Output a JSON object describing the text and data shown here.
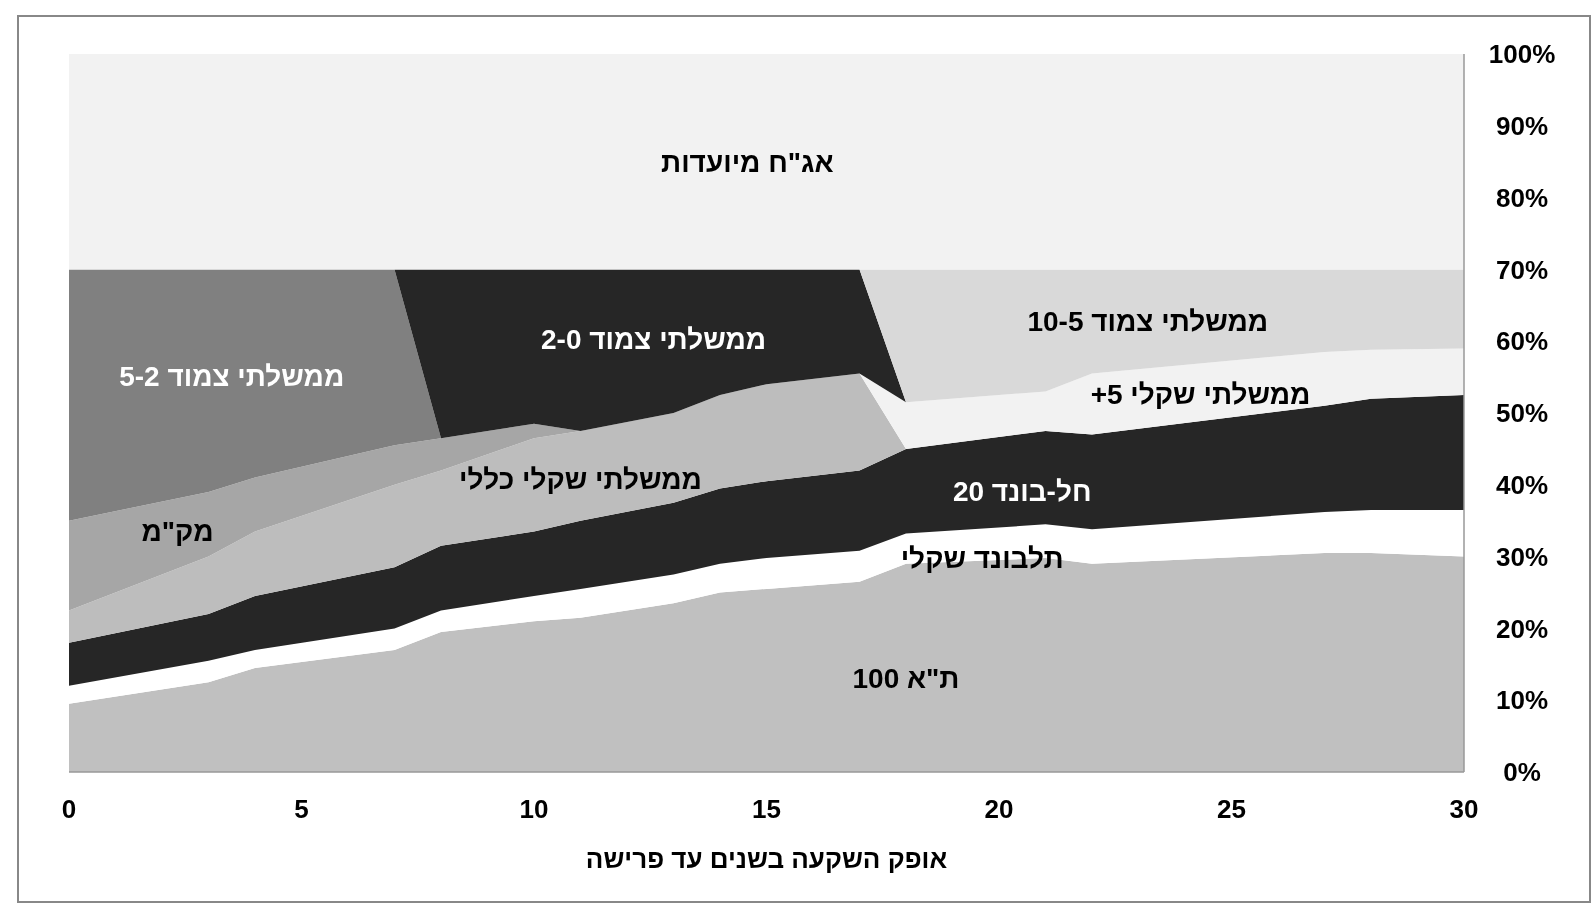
{
  "chart_data": {
    "type": "area",
    "stacked": true,
    "xlabel": "אופק השקעה בשנים עד פרישה",
    "x": [
      0,
      3,
      4,
      7,
      8,
      10,
      11,
      13,
      14,
      15,
      17,
      18,
      21,
      22,
      27,
      28,
      30
    ],
    "xlim": [
      0,
      30
    ],
    "xticks": [
      0,
      5,
      10,
      15,
      20,
      25,
      30
    ],
    "ylim": [
      0,
      100
    ],
    "yticks": [
      {
        "value": 0,
        "label": "0%"
      },
      {
        "value": 10,
        "label": "10%"
      },
      {
        "value": 20,
        "label": "20%"
      },
      {
        "value": 30,
        "label": "30%"
      },
      {
        "value": 40,
        "label": "40%"
      },
      {
        "value": 50,
        "label": "50%"
      },
      {
        "value": 60,
        "label": "60%"
      },
      {
        "value": 70,
        "label": "70%"
      },
      {
        "value": 80,
        "label": "80%"
      },
      {
        "value": 90,
        "label": "90%"
      },
      {
        "value": 100,
        "label": "100%"
      }
    ],
    "grid": false,
    "series": [
      {
        "name": "ת\"א 100",
        "color": "#c0c0c0",
        "values": [
          9.5,
          12.5,
          14.5,
          17,
          19.5,
          21,
          21.5,
          23.5,
          25,
          25.5,
          26.5,
          29,
          29.8,
          29,
          30.5,
          30.5,
          30
        ]
      },
      {
        "name": "תלבונד שקלי",
        "color": "#ffffff",
        "values": [
          2.5,
          3,
          2.5,
          3,
          3,
          3.5,
          4,
          4,
          4,
          4.3,
          4.3,
          4.2,
          4.7,
          4.8,
          5.7,
          6,
          6.5
        ]
      },
      {
        "name": "חל-בונד 20",
        "color": "#262626",
        "values": [
          6,
          6.5,
          7.5,
          8.5,
          9,
          9,
          9.5,
          10,
          10.5,
          10.7,
          11.2,
          11.8,
          13,
          13.2,
          14.8,
          15.5,
          16
        ]
      },
      {
        "name": "ממשלתי שקלי כללי",
        "color": "#bdbdbd",
        "values": [
          4.5,
          8,
          9,
          11.5,
          10.5,
          13,
          12.5,
          12.5,
          13,
          13.5,
          13.5,
          0,
          0,
          0,
          0,
          0,
          0
        ]
      },
      {
        "name": "מק\"מ",
        "color": "#a6a6a6",
        "values": [
          12.5,
          9,
          7.5,
          5.5,
          4.5,
          2,
          0,
          0,
          0,
          0,
          0,
          0,
          0,
          0,
          0,
          0,
          0
        ]
      },
      {
        "name": "ממשלתי שקלי 5+",
        "color": "#f2f2f2",
        "values": [
          0,
          0,
          0,
          0,
          0,
          0,
          0,
          0,
          0,
          0,
          0,
          6.5,
          5.5,
          8.5,
          7.5,
          6.8,
          6.5
        ]
      },
      {
        "name": "ממשלתי צמוד 5-2",
        "color": "#808080",
        "values": [
          35,
          31,
          29,
          24.5,
          0,
          0,
          0,
          0,
          0,
          0,
          0,
          0,
          0,
          0,
          0,
          0,
          0
        ]
      },
      {
        "name": "ממשלתי צמוד 2-0",
        "color": "#262626",
        "values": [
          0,
          0,
          0,
          0,
          23.5,
          21.5,
          22.5,
          20,
          17.5,
          16,
          14.5,
          0,
          0,
          0,
          0,
          0,
          0
        ]
      },
      {
        "name": "ממשלתי צמוד 10-5",
        "color": "#d9d9d9",
        "values": [
          0,
          0,
          0,
          0,
          0,
          0,
          0,
          0,
          0,
          0,
          0,
          18.5,
          17,
          14.5,
          11.5,
          11.2,
          11
        ]
      },
      {
        "name": "אג\"ח מיועדות",
        "color": "#f2f2f2",
        "values": [
          30,
          30,
          30,
          30,
          30,
          30,
          30,
          30,
          30,
          30,
          30,
          30,
          30,
          30,
          30,
          30,
          30
        ]
      }
    ]
  }
}
